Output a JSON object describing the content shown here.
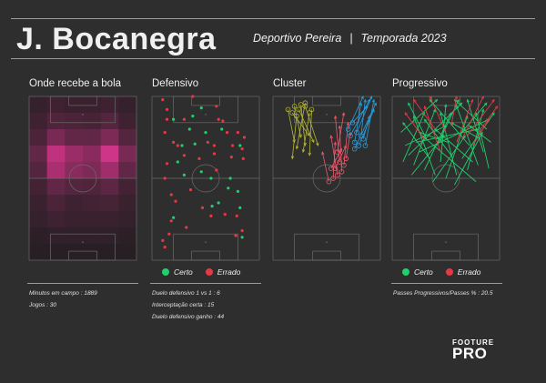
{
  "header": {
    "player": "J. Bocanegra",
    "team": "Deportivo Pereira",
    "separator": "|",
    "season": "Temporada  2023"
  },
  "colors": {
    "background": "#2e2e2e",
    "certo": "#1fd06b",
    "errado": "#e63946",
    "cluster_olive": "#b5b735",
    "cluster_red": "#f05a6e",
    "cluster_blue": "#2b9fe0",
    "heat_high": "#ff3aa4"
  },
  "panels": {
    "receives": {
      "title": "Onde recebe a bola"
    },
    "defensive": {
      "title": "Defensivo"
    },
    "cluster": {
      "title": "Cluster"
    },
    "progressive": {
      "title": "Progressivo"
    }
  },
  "legend": {
    "certo": "Certo",
    "errado": "Errado"
  },
  "stats": {
    "minutes": "Minutos em campo : 1889",
    "games": "Jogos : 30",
    "duels": "Duelo defensivo 1 vs 1 :  6",
    "interceptions": "Interceptação certa :  15",
    "duels_won": "Duelo defensivo ganho :  44",
    "progressive": "Passes Progressivos/Passes % :  20.5"
  },
  "logo": {
    "line1": "FOOTURE",
    "line2": "PRO"
  },
  "chart_data": [
    {
      "type": "heatmap",
      "title": "Onde recebe a bola",
      "rows": 10,
      "cols": 6,
      "values": [
        [
          0.1,
          0.14,
          0.12,
          0.12,
          0.14,
          0.1
        ],
        [
          0.14,
          0.22,
          0.2,
          0.18,
          0.24,
          0.14
        ],
        [
          0.2,
          0.4,
          0.3,
          0.3,
          0.42,
          0.24
        ],
        [
          0.3,
          0.72,
          0.55,
          0.48,
          0.78,
          0.4
        ],
        [
          0.24,
          0.62,
          0.48,
          0.42,
          0.58,
          0.3
        ],
        [
          0.16,
          0.3,
          0.24,
          0.22,
          0.28,
          0.16
        ],
        [
          0.12,
          0.2,
          0.14,
          0.16,
          0.18,
          0.12
        ],
        [
          0.1,
          0.14,
          0.12,
          0.12,
          0.12,
          0.1
        ],
        [
          0.06,
          0.08,
          0.08,
          0.08,
          0.08,
          0.06
        ],
        [
          0.04,
          0.04,
          0.04,
          0.04,
          0.04,
          0.04
        ]
      ]
    },
    {
      "type": "scatter",
      "title": "Defensivo",
      "x_range": [
        0,
        100
      ],
      "y_range": [
        0,
        100
      ],
      "series": [
        {
          "name": "Certo",
          "points": [
            [
              24,
              60
            ],
            [
              20,
              86
            ],
            [
              35,
              80
            ],
            [
              38,
              88
            ],
            [
              40,
              71
            ],
            [
              46,
              93
            ],
            [
              50,
              78
            ],
            [
              46,
              54
            ],
            [
              55,
              50
            ],
            [
              73,
              50
            ],
            [
              71,
              44
            ],
            [
              80,
              42
            ],
            [
              62,
              35
            ],
            [
              56,
              33
            ],
            [
              82,
              32
            ],
            [
              20,
              26
            ],
            [
              82,
              70
            ],
            [
              28,
              70
            ],
            [
              65,
              80
            ],
            [
              30,
              52
            ],
            [
              84,
              14
            ]
          ]
        },
        {
          "name": "Errado",
          "points": [
            [
              10,
              98
            ],
            [
              14,
              92
            ],
            [
              38,
              100
            ],
            [
              60,
              94
            ],
            [
              14,
              86
            ],
            [
              30,
              86
            ],
            [
              62,
              86
            ],
            [
              66,
              85
            ],
            [
              12,
              78
            ],
            [
              70,
              78
            ],
            [
              80,
              78
            ],
            [
              86,
              75
            ],
            [
              20,
              72
            ],
            [
              24,
              70
            ],
            [
              52,
              72
            ],
            [
              58,
              70
            ],
            [
              75,
              70
            ],
            [
              84,
              68
            ],
            [
              30,
              64
            ],
            [
              44,
              62
            ],
            [
              58,
              65
            ],
            [
              74,
              63
            ],
            [
              85,
              62
            ],
            [
              14,
              59
            ],
            [
              12,
              50
            ],
            [
              36,
              43
            ],
            [
              18,
              40
            ],
            [
              22,
              36
            ],
            [
              47,
              32
            ],
            [
              55,
              27
            ],
            [
              68,
              28
            ],
            [
              79,
              27
            ],
            [
              18,
              24
            ],
            [
              32,
              20
            ],
            [
              84,
              18
            ],
            [
              78,
              15
            ],
            [
              12,
              8
            ],
            [
              16,
              16
            ],
            [
              10,
              12
            ],
            [
              60,
              55
            ]
          ]
        }
      ]
    },
    {
      "type": "scatter",
      "title": "Cluster",
      "x_range": [
        0,
        100
      ],
      "y_range": [
        0,
        100
      ],
      "series": [
        {
          "name": "olive",
          "segments": [
            [
              [
                14,
                92
              ],
              [
                20,
                72
              ]
            ],
            [
              [
                20,
                94
              ],
              [
                26,
                75
              ]
            ],
            [
              [
                26,
                95
              ],
              [
                30,
                70
              ]
            ],
            [
              [
                30,
                96
              ],
              [
                22,
                68
              ]
            ],
            [
              [
                18,
                90
              ],
              [
                34,
                76
              ]
            ],
            [
              [
                24,
                92
              ],
              [
                38,
                72
              ]
            ],
            [
              [
                30,
                94
              ],
              [
                42,
                70
              ]
            ],
            [
              [
                34,
                90
              ],
              [
                28,
                66
              ]
            ],
            [
              [
                22,
                88
              ],
              [
                18,
                62
              ]
            ],
            [
              [
                36,
                92
              ],
              [
                34,
                64
              ]
            ]
          ]
        },
        {
          "name": "red",
          "segments": [
            [
              [
                52,
                48
              ],
              [
                46,
                66
              ]
            ],
            [
              [
                56,
                50
              ],
              [
                58,
                72
              ]
            ],
            [
              [
                60,
                52
              ],
              [
                54,
                76
              ]
            ],
            [
              [
                64,
                54
              ],
              [
                62,
                82
              ]
            ],
            [
              [
                58,
                56
              ],
              [
                68,
                70
              ]
            ],
            [
              [
                66,
                58
              ],
              [
                70,
                84
              ]
            ],
            [
              [
                62,
                60
              ],
              [
                58,
                88
              ]
            ],
            [
              [
                54,
                56
              ],
              [
                64,
                68
              ]
            ],
            [
              [
                68,
                62
              ],
              [
                72,
                78
              ]
            ],
            [
              [
                60,
                66
              ],
              [
                66,
                90
              ]
            ]
          ]
        },
        {
          "name": "blue",
          "segments": [
            [
              [
                70,
                80
              ],
              [
                84,
                100
              ]
            ],
            [
              [
                72,
                76
              ],
              [
                90,
                98
              ]
            ],
            [
              [
                76,
                72
              ],
              [
                82,
                96
              ]
            ],
            [
              [
                78,
                78
              ],
              [
                92,
                100
              ]
            ],
            [
              [
                74,
                84
              ],
              [
                88,
                94
              ]
            ],
            [
              [
                80,
                70
              ],
              [
                94,
                92
              ]
            ],
            [
              [
                82,
                76
              ],
              [
                86,
                98
              ]
            ],
            [
              [
                76,
                68
              ],
              [
                96,
                96
              ]
            ],
            [
              [
                84,
                74
              ],
              [
                90,
                88
              ]
            ],
            [
              [
                86,
                70
              ],
              [
                94,
                98
              ]
            ]
          ]
        }
      ]
    },
    {
      "type": "scatter",
      "title": "Progressivo",
      "x_range": [
        0,
        100
      ],
      "y_range": [
        0,
        100
      ],
      "series": [
        {
          "name": "Certo",
          "segments": [
            [
              [
                10,
                60
              ],
              [
                30,
                90
              ]
            ],
            [
              [
                20,
                58
              ],
              [
                40,
                92
              ]
            ],
            [
              [
                30,
                55
              ],
              [
                55,
                90
              ]
            ],
            [
              [
                40,
                52
              ],
              [
                20,
                88
              ]
            ],
            [
              [
                50,
                50
              ],
              [
                70,
                88
              ]
            ],
            [
              [
                60,
                52
              ],
              [
                45,
                90
              ]
            ],
            [
              [
                70,
                55
              ],
              [
                85,
                92
              ]
            ],
            [
              [
                80,
                58
              ],
              [
                60,
                94
              ]
            ],
            [
              [
                90,
                56
              ],
              [
                78,
                90
              ]
            ],
            [
              [
                15,
                64
              ],
              [
                65,
                96
              ]
            ],
            [
              [
                25,
                66
              ],
              [
                90,
                86
              ]
            ],
            [
              [
                35,
                62
              ],
              [
                10,
                84
              ]
            ],
            [
              [
                45,
                60
              ],
              [
                50,
                95
              ]
            ],
            [
              [
                55,
                64
              ],
              [
                30,
                86
              ]
            ],
            [
              [
                65,
                62
              ],
              [
                95,
                90
              ]
            ],
            [
              [
                75,
                60
              ],
              [
                40,
                80
              ]
            ],
            [
              [
                85,
                66
              ],
              [
                70,
                98
              ]
            ],
            [
              [
                12,
                70
              ],
              [
                50,
                82
              ]
            ],
            [
              [
                22,
                72
              ],
              [
                80,
                80
              ]
            ],
            [
              [
                32,
                74
              ],
              [
                15,
                96
              ]
            ],
            [
              [
                42,
                70
              ],
              [
                62,
                98
              ]
            ],
            [
              [
                52,
                72
              ],
              [
                25,
                78
              ]
            ],
            [
              [
                62,
                76
              ],
              [
                88,
                96
              ]
            ],
            [
              [
                72,
                70
              ],
              [
                35,
                98
              ]
            ],
            [
              [
                82,
                74
              ],
              [
                55,
                84
              ]
            ],
            [
              [
                92,
                72
              ],
              [
                72,
                82
              ]
            ],
            [
              [
                18,
                52
              ],
              [
                48,
                76
              ]
            ],
            [
              [
                38,
                48
              ],
              [
                68,
                76
              ]
            ],
            [
              [
                58,
                46
              ],
              [
                84,
                78
              ]
            ],
            [
              [
                78,
                48
              ],
              [
                28,
                76
              ]
            ],
            [
              [
                8,
                78
              ],
              [
                42,
                98
              ]
            ],
            [
              [
                88,
                80
              ],
              [
                58,
                98
              ]
            ]
          ]
        },
        {
          "name": "Errado",
          "segments": [
            [
              [
                60,
                72
              ],
              [
                75,
                98
              ]
            ],
            [
              [
                65,
                74
              ],
              [
                85,
                100
              ]
            ],
            [
              [
                70,
                76
              ],
              [
                95,
                98
              ]
            ],
            [
              [
                50,
                78
              ],
              [
                35,
                100
              ]
            ],
            [
              [
                40,
                80
              ],
              [
                20,
                98
              ]
            ],
            [
              [
                75,
                70
              ],
              [
                90,
                86
              ]
            ],
            [
              [
                30,
                74
              ],
              [
                12,
                90
              ]
            ],
            [
              [
                55,
                82
              ],
              [
                60,
                100
              ]
            ],
            [
              [
                80,
                78
              ],
              [
                98,
                94
              ]
            ],
            [
              [
                45,
                66
              ],
              [
                30,
                94
              ]
            ]
          ]
        }
      ]
    }
  ]
}
